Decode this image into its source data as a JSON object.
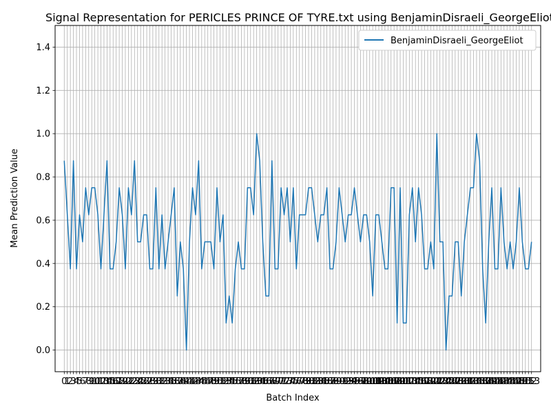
{
  "chart_data": {
    "type": "line",
    "title": "Signal Representation for PERICLES PRINCE OF TYRE.txt using BenjaminDisraeli_GeorgeEliot",
    "xlabel": "Batch Index",
    "ylabel": "Mean Prediction Value",
    "ylim": [
      -0.1,
      1.5
    ],
    "xlim": [
      -3,
      156
    ],
    "yticks": [
      0.0,
      0.2,
      0.4,
      0.6,
      0.8,
      1.0,
      1.2,
      1.4
    ],
    "grid": true,
    "legend_position": "top-right",
    "series": [
      {
        "name": "BenjaminDisraeli_GeorgeEliot",
        "color": "#1f77b4",
        "values": [
          0.875,
          0.625,
          0.375,
          0.875,
          0.375,
          0.625,
          0.5,
          0.75,
          0.625,
          0.75,
          0.75,
          0.625,
          0.375,
          0.625,
          0.875,
          0.375,
          0.375,
          0.5,
          0.75,
          0.625,
          0.375,
          0.75,
          0.625,
          0.875,
          0.5,
          0.5,
          0.625,
          0.625,
          0.375,
          0.375,
          0.75,
          0.375,
          0.625,
          0.375,
          0.5,
          0.625,
          0.75,
          0.25,
          0.5,
          0.375,
          0.0,
          0.5,
          0.75,
          0.625,
          0.875,
          0.375,
          0.5,
          0.5,
          0.5,
          0.375,
          0.75,
          0.5,
          0.625,
          0.125,
          0.25,
          0.125,
          0.375,
          0.5,
          0.375,
          0.375,
          0.75,
          0.75,
          0.625,
          1.0,
          0.875,
          0.5,
          0.25,
          0.25,
          0.875,
          0.375,
          0.375,
          0.75,
          0.625,
          0.75,
          0.5,
          0.75,
          0.375,
          0.625,
          0.625,
          0.625,
          0.75,
          0.75,
          0.625,
          0.5,
          0.625,
          0.625,
          0.75,
          0.375,
          0.375,
          0.5,
          0.75,
          0.625,
          0.5,
          0.625,
          0.625,
          0.75,
          0.625,
          0.5,
          0.625,
          0.625,
          0.5,
          0.25,
          0.625,
          0.625,
          0.5,
          0.375,
          0.375,
          0.75,
          0.75,
          0.125,
          0.75,
          0.125,
          0.125,
          0.625,
          0.75,
          0.5,
          0.75,
          0.625,
          0.375,
          0.375,
          0.5,
          0.375,
          1.0,
          0.5,
          0.5,
          0.0,
          0.25,
          0.25,
          0.5,
          0.5,
          0.25,
          0.5,
          0.625,
          0.75,
          0.75,
          1.0,
          0.875,
          0.375,
          0.125,
          0.5,
          0.75,
          0.375,
          0.375,
          0.75,
          0.5,
          0.375,
          0.5,
          0.375,
          0.5,
          0.75,
          0.5,
          0.375,
          0.375,
          0.5
        ]
      }
    ]
  }
}
